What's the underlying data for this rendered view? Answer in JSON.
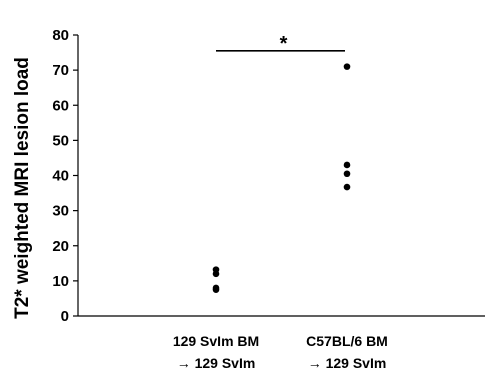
{
  "chart_data": {
    "type": "scatter",
    "title": "",
    "ylabel": "T2* weighted MRI lesion load",
    "xlabel": "",
    "ylim": [
      0,
      80
    ],
    "yticks": [
      0,
      10,
      20,
      30,
      40,
      50,
      60,
      70,
      80
    ],
    "categories": [
      {
        "line1": "129 SvIm BM",
        "line2": "→ 129 SvIm"
      },
      {
        "line1": "C57BL/6 BM",
        "line2": "→ 129 SvIm"
      }
    ],
    "series": [
      {
        "values": [
          13.2,
          12.0,
          8.0,
          7.5
        ]
      },
      {
        "values": [
          71.0,
          43.0,
          40.5,
          36.7
        ]
      }
    ],
    "significance": {
      "from": 0,
      "to": 1,
      "y": 75.5,
      "label": "*"
    },
    "grid": false
  }
}
